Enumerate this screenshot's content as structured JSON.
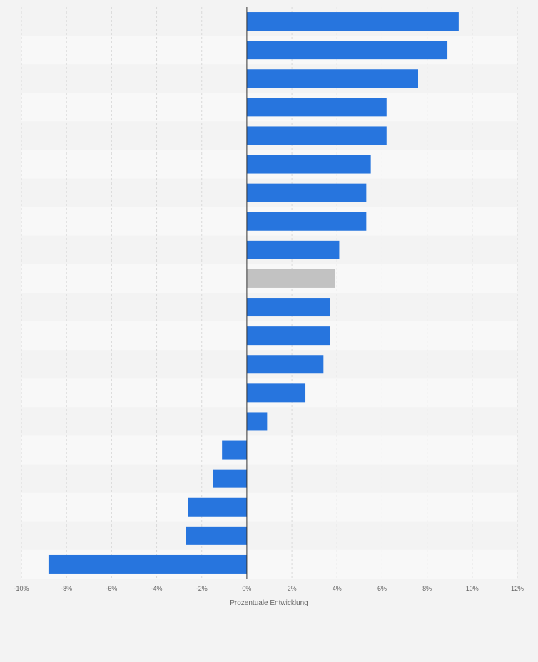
{
  "chart_data": {
    "type": "bar",
    "orientation": "horizontal",
    "title": "",
    "xlabel": "Prozentuale Entwicklung",
    "ylabel": "",
    "xlim": [
      -10,
      12
    ],
    "tick_values": [
      -10,
      -8,
      -6,
      -4,
      -2,
      0,
      2,
      4,
      6,
      8,
      10,
      12
    ],
    "tick_labels": [
      "-10%",
      "-8%",
      "-6%",
      "-4%",
      "-2%",
      "0%",
      "2%",
      "4%",
      "6%",
      "8%",
      "10%",
      "12%"
    ],
    "grid": true,
    "legend": "none",
    "colors": {
      "bar": "#2775de",
      "highlight": "#c2c2c2",
      "stripe_light": "#f8f8f8",
      "stripe_dark": "#f3f3f3",
      "grid": "#d9d9d9",
      "axis": "#333333",
      "tick_text": "#666666"
    },
    "highlight_index": 9,
    "values": [
      9.4,
      8.9,
      7.6,
      6.2,
      6.2,
      5.5,
      5.3,
      5.3,
      4.1,
      3.9,
      3.7,
      3.7,
      3.4,
      2.6,
      0.9,
      -1.1,
      -1.5,
      -2.6,
      -2.7,
      -8.8
    ]
  }
}
